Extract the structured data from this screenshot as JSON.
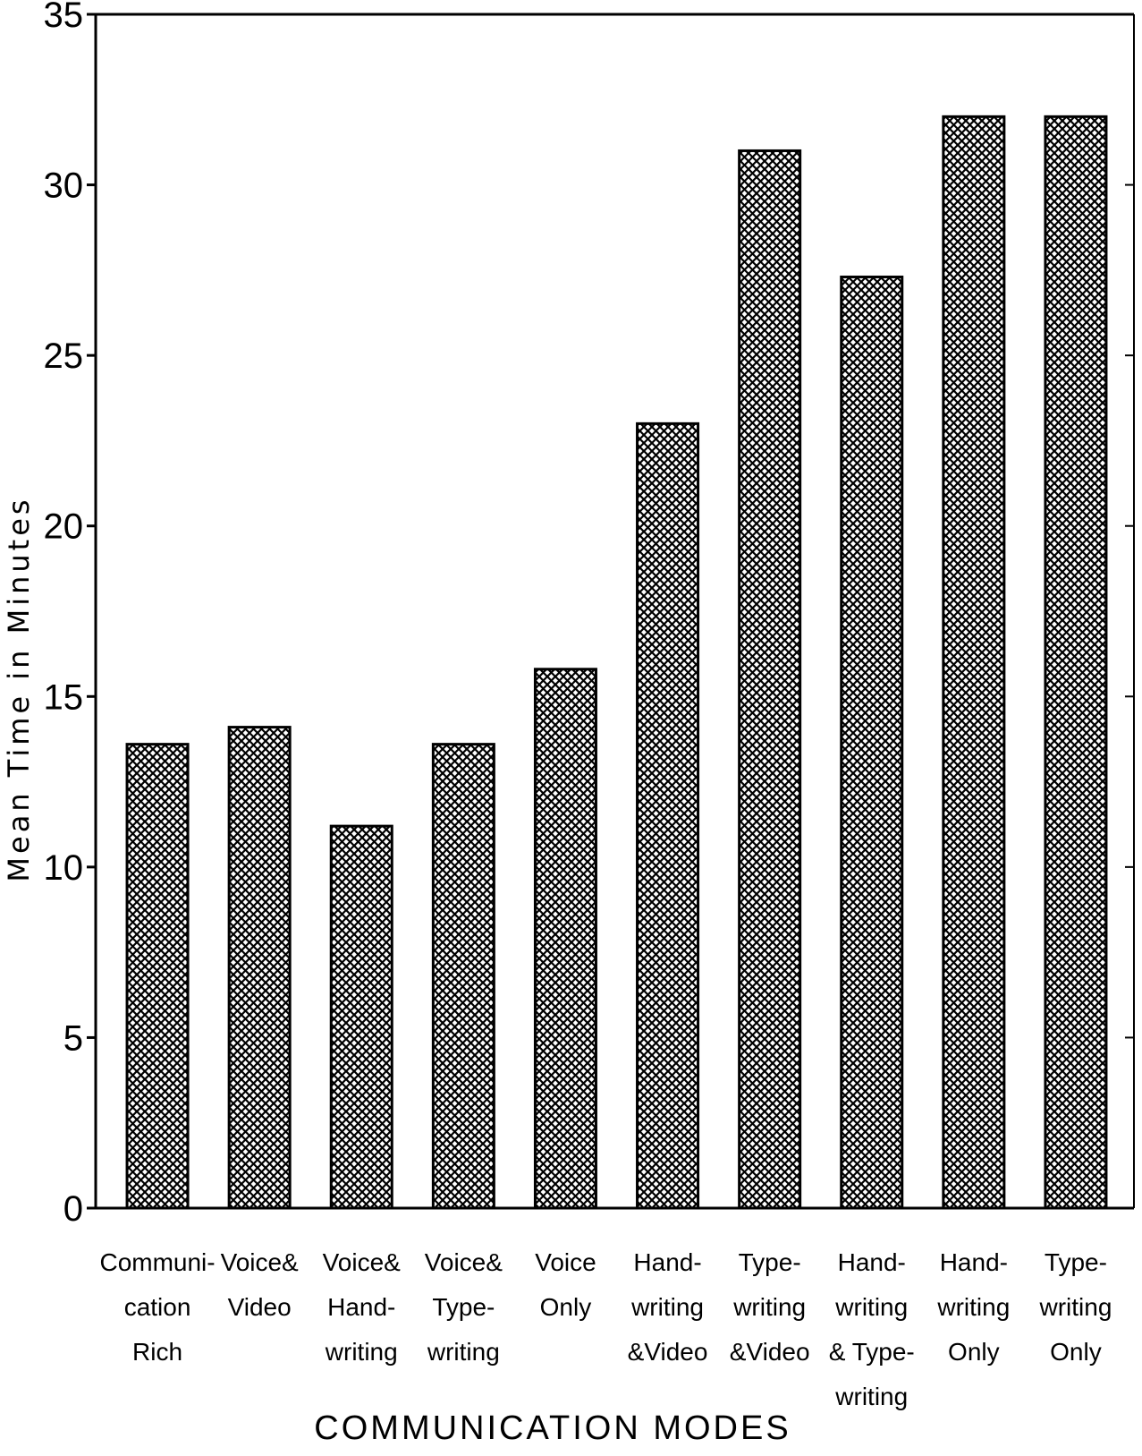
{
  "chart_data": {
    "type": "bar",
    "categories": [
      [
        "Communi-",
        "cation",
        "Rich"
      ],
      [
        "Voice&",
        "Video"
      ],
      [
        "Voice&",
        "Hand-",
        "writing"
      ],
      [
        "Voice&",
        "Type-",
        "writing"
      ],
      [
        "Voice",
        "Only"
      ],
      [
        "Hand-",
        "writing",
        "&Video"
      ],
      [
        "Type-",
        "writing",
        "&Video"
      ],
      [
        "Hand-",
        "writing",
        "& Type-",
        "writing"
      ],
      [
        "Hand-",
        "writing",
        "Only"
      ],
      [
        "Type-",
        "writing",
        "Only"
      ]
    ],
    "values": [
      13.6,
      14.1,
      11.2,
      13.6,
      15.8,
      23.0,
      31.0,
      27.3,
      32.0,
      32.0
    ],
    "xlabel": "COMMUNICATION MODES",
    "ylabel": "Mean Time in Minutes",
    "ylim": [
      0,
      35
    ],
    "yticks": [
      "0",
      "5",
      "10",
      "15",
      "20",
      "25",
      "30",
      "35"
    ],
    "grid": false,
    "bar_fill": "crosshatch",
    "colors": {
      "bar_stroke": "#000000",
      "hatch": "#000000",
      "background": "#ffffff"
    }
  }
}
